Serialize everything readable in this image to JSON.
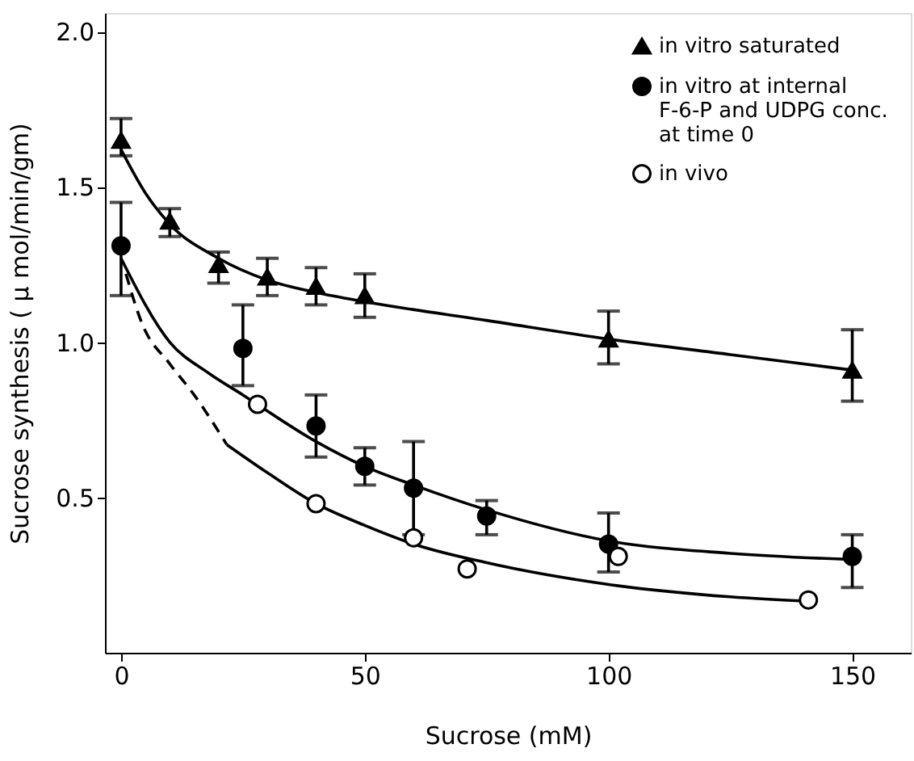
{
  "chart_data": {
    "type": "scatter",
    "xlabel": "Sucrose (mM)",
    "ylabel": "Sucrose synthesis ( μ mol/min/gm)",
    "xlim": [
      -3.3,
      162
    ],
    "ylim": [
      0,
      2.06
    ],
    "xticks": [
      0,
      50,
      100,
      150
    ],
    "yticks": [
      {
        "value": 0.5,
        "label": "0.5"
      },
      {
        "value": 1,
        "label": "1.0"
      },
      {
        "value": 1.5,
        "label": "1.5"
      },
      {
        "value": 2,
        "label": "2.0"
      }
    ],
    "grid": false,
    "legend": "top right",
    "series": [
      {
        "name": "in vitro saturated",
        "marker": "triangle",
        "color": "#000000",
        "x": [
          0,
          10,
          20,
          30,
          40,
          50,
          100,
          150
        ],
        "values": [
          1.65,
          1.39,
          1.25,
          1.21,
          1.18,
          1.15,
          1.01,
          0.91
        ],
        "errors": [
          [
            1.6,
            1.72
          ],
          [
            1.34,
            1.43
          ],
          [
            1.19,
            1.29
          ],
          [
            1.15,
            1.27
          ],
          [
            1.12,
            1.24
          ],
          [
            1.08,
            1.22
          ],
          [
            0.93,
            1.1
          ],
          [
            0.81,
            1.04
          ]
        ]
      },
      {
        "name": "in vitro at internal F-6-P and UDPG conc. at time 0",
        "marker": "circle",
        "color": "#000000",
        "x": [
          0,
          25,
          40,
          50,
          60,
          75,
          100,
          150
        ],
        "values": [
          1.31,
          0.98,
          0.73,
          0.6,
          0.53,
          0.44,
          0.35,
          0.31
        ],
        "errors": [
          [
            1.15,
            1.45
          ],
          [
            0.86,
            1.12
          ],
          [
            0.63,
            0.83
          ],
          [
            0.54,
            0.66
          ],
          [
            0.38,
            0.68
          ],
          [
            0.38,
            0.49
          ],
          [
            0.26,
            0.45
          ],
          [
            0.21,
            0.38
          ]
        ]
      },
      {
        "name": "in vivo",
        "marker": "circle",
        "color": "#ffffff",
        "x": [
          28,
          40,
          60,
          71,
          102,
          141
        ],
        "values": [
          0.8,
          0.48,
          0.37,
          0.27,
          0.31,
          0.17
        ]
      },
      {
        "type": "line",
        "line_style": "solid",
        "color": "#000000",
        "x": [
          0,
          5,
          10,
          20,
          30,
          40,
          50,
          75,
          100,
          125,
          150
        ],
        "values": [
          1.62,
          1.48,
          1.38,
          1.27,
          1.2,
          1.16,
          1.13,
          1.07,
          1.01,
          0.96,
          0.91
        ]
      },
      {
        "type": "line",
        "line_style": "solid",
        "color": "#000000",
        "x": [
          0,
          10,
          18,
          25,
          40,
          50,
          60,
          75,
          100,
          125,
          150
        ],
        "values": [
          1.27,
          1.0,
          0.9,
          0.83,
          0.68,
          0.6,
          0.54,
          0.46,
          0.36,
          0.32,
          0.3
        ]
      },
      {
        "type": "line",
        "line_style": "dashed",
        "color": "#000000",
        "x": [
          1,
          4.3,
          10,
          15,
          21.7
        ],
        "values": [
          1.22,
          1.06,
          0.93,
          0.83,
          0.67
        ]
      },
      {
        "type": "line",
        "line_style": "solid",
        "color": "#000000",
        "x": [
          21.7,
          30,
          40,
          50,
          60,
          75,
          100,
          125,
          142
        ],
        "values": [
          0.67,
          0.58,
          0.48,
          0.41,
          0.35,
          0.29,
          0.22,
          0.18,
          0.165
        ]
      }
    ]
  }
}
